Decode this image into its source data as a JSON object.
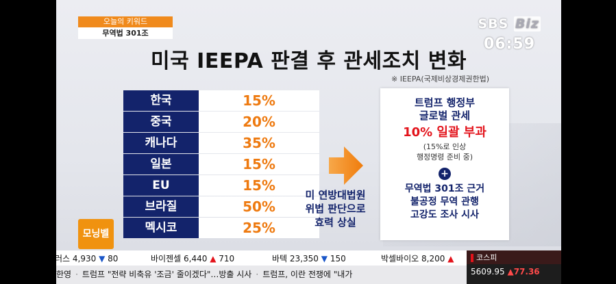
{
  "keyword": {
    "header": "오늘의 키워드",
    "value": "무역법 301조"
  },
  "logo": {
    "sbs": "SBS",
    "biz": "Biz"
  },
  "clock": "06:59",
  "title": "미국 IEEPA 판결 후 관세조치 변화",
  "note": "※ IEEPA(국제비상경제권한법)",
  "table": [
    {
      "country": "한국",
      "rate": "15%"
    },
    {
      "country": "중국",
      "rate": "20%"
    },
    {
      "country": "캐나다",
      "rate": "35%"
    },
    {
      "country": "일본",
      "rate": "15%"
    },
    {
      "country": "EU",
      "rate": "15%"
    },
    {
      "country": "브라질",
      "rate": "50%"
    },
    {
      "country": "멕시코",
      "rate": "25%"
    }
  ],
  "morning_badge": "모닝벨",
  "left_text": {
    "line1": "미 연방대법원",
    "line2": "위법 판단으로",
    "line3": "효력 상실"
  },
  "right_box": {
    "line1": "트럼프 행정부",
    "line2": "글로벌 관세",
    "red": "10% 일괄 부과",
    "small1": "(15%로 인상",
    "small2": "행정명령 준비 중)",
    "plus": "+",
    "line3": "무역법 301조 근거",
    "line4": "불공정 무역 관행",
    "line5": "고강도 조사 시사"
  },
  "ticker": [
    {
      "name": "러스",
      "value": "4,930",
      "dir": "▼",
      "change": "80",
      "up": false
    },
    {
      "name": "바이젠셀",
      "value": "6,440",
      "dir": "▲",
      "change": "710",
      "up": true
    },
    {
      "name": "바텍",
      "value": "23,350",
      "dir": "▼",
      "change": "150",
      "up": false
    },
    {
      "name": "박셀바이오",
      "value": "8,200",
      "dir": "▲",
      "change": "",
      "up": true
    }
  ],
  "kospi": {
    "label": "코스피",
    "value": "5609.95",
    "dir": "▲",
    "change": "77.36"
  },
  "news": [
    "한영",
    "트럼프 \"전략 비축유 '조금' 줄이겠다\"…방출 시사",
    "트럼프, 이란 전쟁에 \"내가"
  ],
  "colors": {
    "navy": "#13236b",
    "orange": "#ee7a10",
    "red": "#e3131b"
  }
}
